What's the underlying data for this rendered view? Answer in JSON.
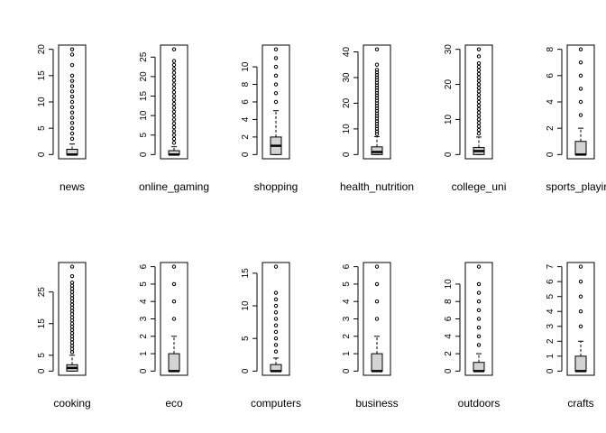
{
  "chart_data": [
    {
      "type": "box",
      "xlabel": "news",
      "ylim": [
        0,
        20
      ],
      "ticks": [
        0,
        5,
        10,
        15,
        20
      ],
      "box": {
        "min": 0,
        "q1": 0,
        "median": 0,
        "q3": 1,
        "max": 2
      },
      "outliers": [
        3,
        4,
        5,
        6,
        7,
        8,
        9,
        10,
        11,
        12,
        13,
        14,
        15,
        17,
        19,
        20
      ]
    },
    {
      "type": "box",
      "xlabel": "online_gaming",
      "ylim": [
        0,
        27
      ],
      "ticks": [
        0,
        5,
        10,
        15,
        20,
        25
      ],
      "box": {
        "min": 0,
        "q1": 0,
        "median": 0,
        "q3": 1,
        "max": 2
      },
      "outliers": [
        3,
        4,
        5,
        6,
        7,
        8,
        9,
        10,
        11,
        12,
        13,
        14,
        15,
        16,
        17,
        18,
        19,
        20,
        21,
        22,
        23,
        24,
        27
      ]
    },
    {
      "type": "box",
      "xlabel": "shopping",
      "ylim": [
        0,
        12
      ],
      "ticks": [
        0,
        2,
        4,
        6,
        8,
        10
      ],
      "box": {
        "min": 0,
        "q1": 0,
        "median": 1,
        "q3": 2,
        "max": 5
      },
      "outliers": [
        6,
        7,
        8,
        9,
        10,
        11,
        12
      ]
    },
    {
      "type": "box",
      "xlabel": "health_nutrition",
      "ylim": [
        0,
        41
      ],
      "ticks": [
        0,
        10,
        20,
        30,
        40
      ],
      "box": {
        "min": 0,
        "q1": 0,
        "median": 1,
        "q3": 3,
        "max": 7
      },
      "outliers": [
        8,
        9,
        10,
        11,
        12,
        13,
        14,
        15,
        16,
        17,
        18,
        19,
        20,
        21,
        22,
        23,
        24,
        25,
        26,
        27,
        28,
        29,
        30,
        31,
        32,
        33,
        35,
        41
      ]
    },
    {
      "type": "box",
      "xlabel": "college_uni",
      "ylim": [
        0,
        30
      ],
      "ticks": [
        0,
        10,
        20,
        30
      ],
      "box": {
        "min": 0,
        "q1": 0,
        "median": 1,
        "q3": 2,
        "max": 5
      },
      "outliers": [
        6,
        7,
        8,
        9,
        10,
        11,
        12,
        13,
        14,
        15,
        16,
        17,
        18,
        19,
        20,
        21,
        22,
        23,
        24,
        25,
        26,
        28,
        30
      ]
    },
    {
      "type": "box",
      "xlabel": "sports_playing",
      "ylim": [
        0,
        8
      ],
      "ticks": [
        0,
        2,
        4,
        6,
        8
      ],
      "box": {
        "min": 0,
        "q1": 0,
        "median": 0,
        "q3": 1,
        "max": 2
      },
      "outliers": [
        3,
        4,
        5,
        6,
        7,
        8
      ]
    },
    {
      "type": "box",
      "xlabel": "cooking",
      "ylim": [
        0,
        33
      ],
      "ticks": [
        0,
        5,
        15,
        25
      ],
      "box": {
        "min": 0,
        "q1": 0,
        "median": 1,
        "q3": 2,
        "max": 5
      },
      "outliers": [
        6,
        7,
        8,
        9,
        10,
        11,
        12,
        13,
        14,
        15,
        16,
        17,
        18,
        19,
        20,
        21,
        22,
        23,
        24,
        25,
        26,
        27,
        28,
        30,
        33
      ]
    },
    {
      "type": "box",
      "xlabel": "eco",
      "ylim": [
        0,
        6
      ],
      "ticks": [
        0,
        1,
        2,
        3,
        4,
        5,
        6
      ],
      "box": {
        "min": 0,
        "q1": 0,
        "median": 0,
        "q3": 1,
        "max": 2
      },
      "outliers": [
        3,
        4,
        5,
        6
      ]
    },
    {
      "type": "box",
      "xlabel": "computers",
      "ylim": [
        0,
        16
      ],
      "ticks": [
        0,
        5,
        10,
        15
      ],
      "box": {
        "min": 0,
        "q1": 0,
        "median": 0,
        "q3": 1,
        "max": 2
      },
      "outliers": [
        3,
        4,
        5,
        6,
        7,
        8,
        9,
        10,
        11,
        12,
        16
      ]
    },
    {
      "type": "box",
      "xlabel": "business",
      "ylim": [
        0,
        6
      ],
      "ticks": [
        0,
        1,
        2,
        3,
        4,
        5,
        6
      ],
      "box": {
        "min": 0,
        "q1": 0,
        "median": 0,
        "q3": 1,
        "max": 2
      },
      "outliers": [
        3,
        4,
        5,
        6
      ]
    },
    {
      "type": "box",
      "xlabel": "outdoors",
      "ylim": [
        0,
        12
      ],
      "ticks": [
        0,
        2,
        4,
        6,
        8,
        10
      ],
      "box": {
        "min": 0,
        "q1": 0,
        "median": 0,
        "q3": 1,
        "max": 2
      },
      "outliers": [
        3,
        4,
        5,
        6,
        7,
        8,
        9,
        10,
        12
      ]
    },
    {
      "type": "box",
      "xlabel": "crafts",
      "ylim": [
        0,
        7
      ],
      "ticks": [
        0,
        1,
        2,
        3,
        4,
        5,
        6,
        7
      ],
      "box": {
        "min": 0,
        "q1": 0,
        "median": 0,
        "q3": 1,
        "max": 2
      },
      "outliers": [
        3,
        4,
        5,
        6,
        7
      ]
    }
  ],
  "colors": {
    "box_fill": "#d3d3d3",
    "stroke": "#000000",
    "background": "#ffffff"
  }
}
